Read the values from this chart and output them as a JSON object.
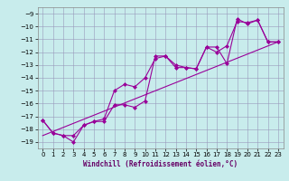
{
  "title": "",
  "xlabel": "Windchill (Refroidissement éolien,°C)",
  "bg_color": "#c8ecec",
  "line_color": "#990099",
  "grid_color": "#9999bb",
  "xlim": [
    -0.5,
    23.5
  ],
  "ylim": [
    -19.5,
    -8.5
  ],
  "yticks": [
    -19,
    -18,
    -17,
    -16,
    -15,
    -14,
    -13,
    -12,
    -11,
    -10,
    -9
  ],
  "xticks": [
    0,
    1,
    2,
    3,
    4,
    5,
    6,
    7,
    8,
    9,
    10,
    11,
    12,
    13,
    14,
    15,
    16,
    17,
    18,
    19,
    20,
    21,
    22,
    23
  ],
  "series1_x": [
    0,
    1,
    2,
    3,
    4,
    5,
    6,
    7,
    8,
    9,
    10,
    11,
    12,
    13,
    14,
    15,
    16,
    17,
    18,
    19,
    20,
    21,
    22,
    23
  ],
  "series1_y": [
    -17.3,
    -18.3,
    -18.5,
    -19.0,
    -17.7,
    -17.4,
    -17.4,
    -16.1,
    -16.1,
    -16.3,
    -15.8,
    -12.3,
    -12.3,
    -13.0,
    -13.2,
    -13.3,
    -11.6,
    -11.6,
    -12.9,
    -9.4,
    -9.8,
    -9.5,
    -11.2,
    -11.2
  ],
  "series2_x": [
    0,
    1,
    2,
    3,
    4,
    5,
    6,
    7,
    8,
    9,
    10,
    11,
    12,
    13,
    14,
    15,
    16,
    17,
    18,
    19,
    20,
    21,
    22,
    23
  ],
  "series2_y": [
    -17.3,
    -18.3,
    -18.5,
    -18.5,
    -17.7,
    -17.4,
    -17.2,
    -15.0,
    -14.5,
    -14.7,
    -14.0,
    -12.5,
    -12.3,
    -13.2,
    -13.2,
    -13.3,
    -11.6,
    -12.0,
    -11.5,
    -9.6,
    -9.7,
    -9.5,
    -11.2,
    -11.2
  ],
  "ref_line_x": [
    0,
    23
  ],
  "ref_line_y": [
    -18.5,
    -11.2
  ]
}
